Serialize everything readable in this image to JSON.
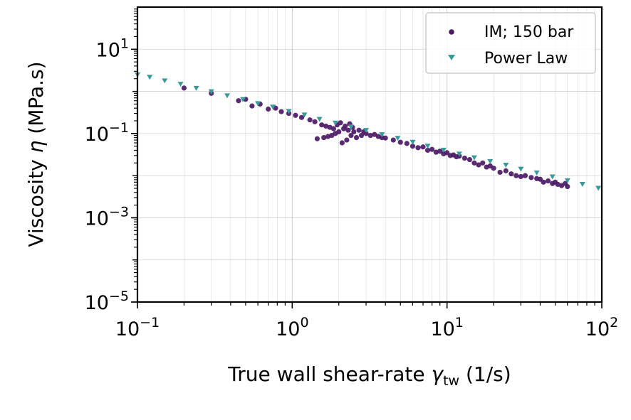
{
  "chart_data": {
    "type": "scatter",
    "x_scale": "log",
    "y_scale": "log",
    "xlim": [
      0.1,
      100
    ],
    "ylim": [
      1e-05,
      100
    ],
    "grid": true,
    "legend_position": "top-right",
    "colors": {
      "im": "#4b1a66",
      "power_law": "#3a9a9a",
      "grid": "#b0b0b0"
    },
    "xlabel": {
      "prefix": "True wall shear-rate ",
      "symbol": "γ",
      "subscript": "tw",
      "suffix": " (1/s)"
    },
    "ylabel": {
      "prefix": "Viscosity ",
      "symbol": "η",
      "suffix": " (MPa.s)"
    },
    "x_ticks": [
      {
        "value": 0.1,
        "base": "10",
        "exp": "−1"
      },
      {
        "value": 1,
        "base": "10",
        "exp": "0"
      },
      {
        "value": 10,
        "base": "10",
        "exp": "1"
      },
      {
        "value": 100,
        "base": "10",
        "exp": "2"
      }
    ],
    "y_ticks": [
      {
        "value": 1e-05,
        "base": "10",
        "exp": "−5"
      },
      {
        "value": 0.001,
        "base": "10",
        "exp": "−3"
      },
      {
        "value": 0.1,
        "base": "10",
        "exp": "−1"
      },
      {
        "value": 10,
        "base": "10",
        "exp": "1"
      }
    ],
    "series": [
      {
        "name": "IM; 150 bar",
        "marker": "circle",
        "points": [
          [
            0.2,
            1.2
          ],
          [
            0.3,
            0.9
          ],
          [
            0.45,
            0.6
          ],
          [
            0.5,
            0.65
          ],
          [
            0.55,
            0.45
          ],
          [
            0.62,
            0.5
          ],
          [
            0.7,
            0.38
          ],
          [
            0.78,
            0.4
          ],
          [
            0.85,
            0.33
          ],
          [
            0.95,
            0.3
          ],
          [
            1.05,
            0.27
          ],
          [
            1.15,
            0.24
          ],
          [
            1.3,
            0.21
          ],
          [
            1.4,
            0.19
          ],
          [
            1.45,
            0.075
          ],
          [
            1.55,
            0.16
          ],
          [
            1.6,
            0.08
          ],
          [
            1.65,
            0.15
          ],
          [
            1.7,
            0.085
          ],
          [
            1.75,
            0.14
          ],
          [
            1.8,
            0.09
          ],
          [
            1.85,
            0.13
          ],
          [
            1.9,
            0.1
          ],
          [
            1.95,
            0.16
          ],
          [
            2.0,
            0.11
          ],
          [
            2.05,
            0.18
          ],
          [
            2.1,
            0.06
          ],
          [
            2.15,
            0.13
          ],
          [
            2.2,
            0.15
          ],
          [
            2.25,
            0.07
          ],
          [
            2.3,
            0.12
          ],
          [
            2.35,
            0.17
          ],
          [
            2.4,
            0.09
          ],
          [
            2.45,
            0.14
          ],
          [
            2.5,
            0.11
          ],
          [
            2.6,
            0.08
          ],
          [
            2.7,
            0.12
          ],
          [
            2.8,
            0.09
          ],
          [
            2.9,
            0.11
          ],
          [
            3.0,
            0.1
          ],
          [
            3.2,
            0.09
          ],
          [
            3.4,
            0.095
          ],
          [
            3.6,
            0.085
          ],
          [
            3.8,
            0.08
          ],
          [
            4.0,
            0.078
          ],
          [
            4.5,
            0.07
          ],
          [
            5.0,
            0.062
          ],
          [
            5.5,
            0.058
          ],
          [
            6.0,
            0.05
          ],
          [
            6.5,
            0.046
          ],
          [
            7.0,
            0.048
          ],
          [
            7.5,
            0.04
          ],
          [
            8.0,
            0.042
          ],
          [
            8.5,
            0.036
          ],
          [
            9.0,
            0.038
          ],
          [
            9.5,
            0.033
          ],
          [
            10.0,
            0.035
          ],
          [
            10.5,
            0.03
          ],
          [
            11.0,
            0.031
          ],
          [
            11.5,
            0.028
          ],
          [
            12.0,
            0.029
          ],
          [
            13.0,
            0.026
          ],
          [
            14.0,
            0.024
          ],
          [
            15.0,
            0.02
          ],
          [
            16.0,
            0.018
          ],
          [
            17.0,
            0.02
          ],
          [
            18.0,
            0.016
          ],
          [
            19.0,
            0.017
          ],
          [
            20.0,
            0.015
          ],
          [
            22.0,
            0.012
          ],
          [
            24.0,
            0.013
          ],
          [
            26.0,
            0.011
          ],
          [
            28.0,
            0.01
          ],
          [
            30.0,
            0.0095
          ],
          [
            32.0,
            0.01
          ],
          [
            35.0,
            0.009
          ],
          [
            38.0,
            0.0085
          ],
          [
            40.0,
            0.0082
          ],
          [
            42.0,
            0.007
          ],
          [
            45.0,
            0.0075
          ],
          [
            48.0,
            0.0065
          ],
          [
            50.0,
            0.007
          ],
          [
            52.0,
            0.0062
          ],
          [
            55.0,
            0.0058
          ],
          [
            58.0,
            0.0065
          ],
          [
            60.0,
            0.0055
          ]
        ]
      },
      {
        "name": "Power Law",
        "marker": "triangle-down",
        "points": [
          [
            0.1,
            2.5
          ],
          [
            0.12,
            2.2
          ],
          [
            0.15,
            1.8
          ],
          [
            0.19,
            1.5
          ],
          [
            0.24,
            1.2
          ],
          [
            0.3,
            1.0
          ],
          [
            0.38,
            0.8
          ],
          [
            0.48,
            0.65
          ],
          [
            0.6,
            0.52
          ],
          [
            0.75,
            0.43
          ],
          [
            0.95,
            0.34
          ],
          [
            1.2,
            0.28
          ],
          [
            1.5,
            0.22
          ],
          [
            1.9,
            0.18
          ],
          [
            2.4,
            0.145
          ],
          [
            3.0,
            0.12
          ],
          [
            3.8,
            0.095
          ],
          [
            4.8,
            0.078
          ],
          [
            6.0,
            0.063
          ],
          [
            7.5,
            0.051
          ],
          [
            9.5,
            0.041
          ],
          [
            12.0,
            0.033
          ],
          [
            15.0,
            0.027
          ],
          [
            19.0,
            0.022
          ],
          [
            24.0,
            0.018
          ],
          [
            30.0,
            0.0145
          ],
          [
            38.0,
            0.0118
          ],
          [
            48.0,
            0.0095
          ],
          [
            60.0,
            0.0077
          ],
          [
            75.0,
            0.0063
          ],
          [
            95.0,
            0.0051
          ]
        ]
      }
    ]
  }
}
